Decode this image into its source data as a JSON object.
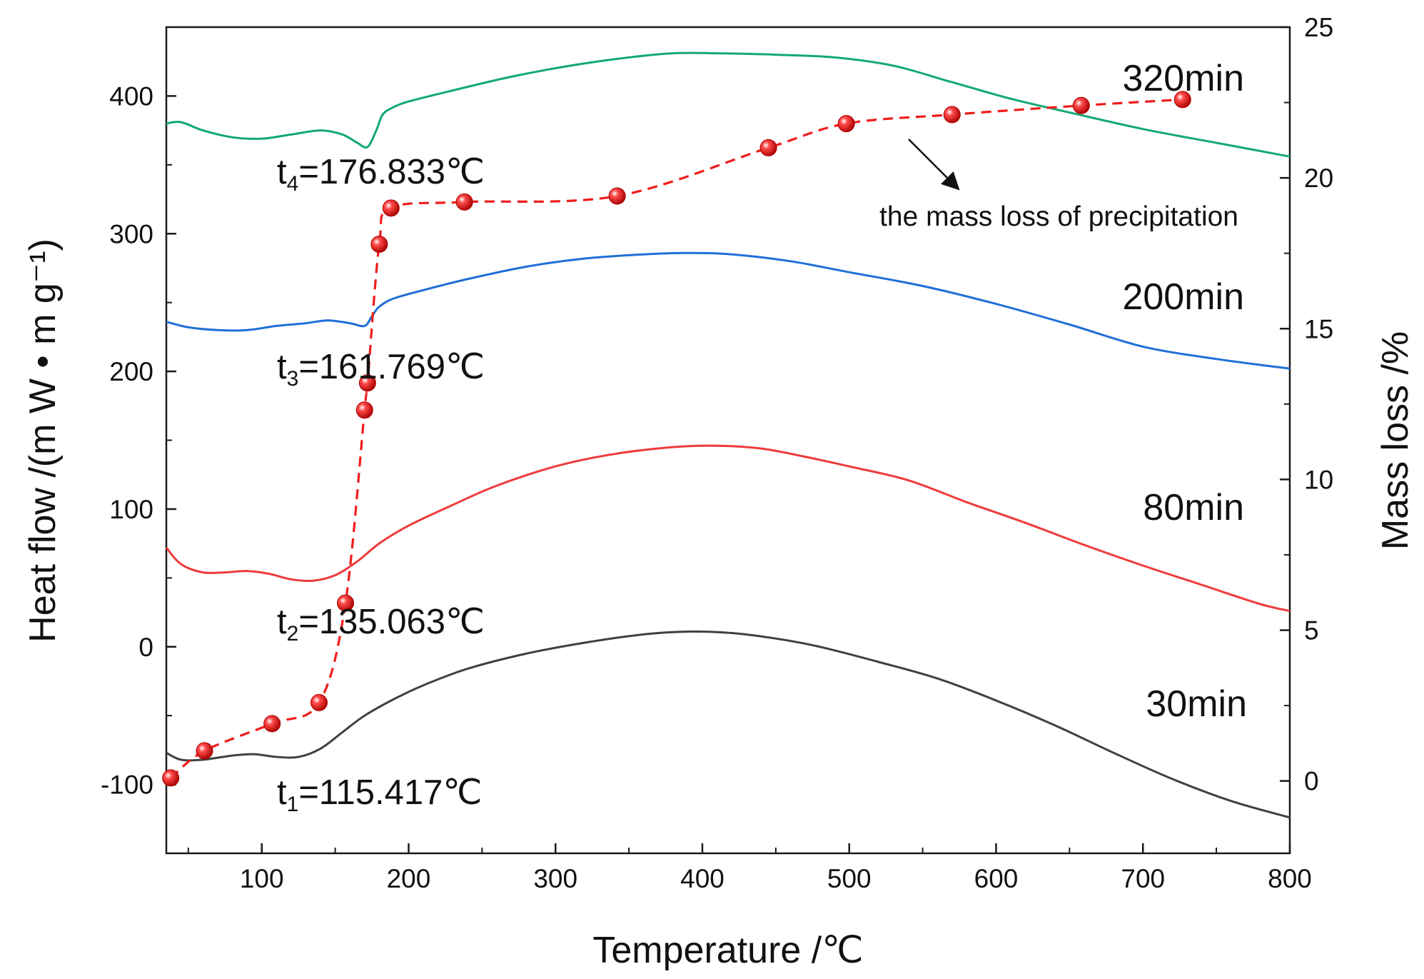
{
  "chart_data": {
    "type": "line",
    "title": "",
    "xlabel": "Temperature /℃",
    "ylabel": "Heat flow /(m W • m g⁻¹)",
    "y2label": "Mass loss /%",
    "xlim": [
      35,
      800
    ],
    "ylim": [
      -150,
      450
    ],
    "y2lim": [
      -2.4,
      25
    ],
    "x_ticks": [
      100,
      200,
      300,
      400,
      500,
      600,
      700,
      800
    ],
    "y_ticks": [
      -100,
      0,
      100,
      200,
      300,
      400
    ],
    "y2_ticks": [
      0,
      5,
      10,
      15,
      20,
      25
    ],
    "series": [
      {
        "name": "30min",
        "axis": "left",
        "color": "#404040",
        "x": [
          35,
          45,
          60,
          80,
          95,
          110,
          125,
          140,
          155,
          170,
          190,
          210,
          240,
          280,
          320,
          360,
          390,
          420,
          450,
          480,
          520,
          560,
          600,
          640,
          680,
          720,
          760,
          800
        ],
        "y": [
          -77,
          -82,
          -82,
          -79,
          -78,
          -80,
          -80,
          -74,
          -62,
          -50,
          -38,
          -28,
          -16,
          -5,
          3,
          9,
          11,
          10,
          6,
          0,
          -11,
          -23,
          -39,
          -57,
          -77,
          -96,
          -112,
          -124
        ]
      },
      {
        "name": "80min",
        "axis": "left",
        "color": "#ef3b3b",
        "x": [
          35,
          45,
          60,
          75,
          90,
          105,
          120,
          135,
          150,
          165,
          180,
          200,
          230,
          260,
          300,
          340,
          380,
          410,
          440,
          470,
          500,
          540,
          580,
          620,
          660,
          700,
          740,
          780,
          800
        ],
        "y": [
          72,
          60,
          54,
          54,
          55,
          53,
          49,
          48,
          52,
          62,
          75,
          88,
          103,
          117,
          131,
          140,
          145,
          146,
          144,
          138,
          131,
          121,
          105,
          90,
          74,
          59,
          45,
          31,
          26
        ]
      },
      {
        "name": "200min",
        "axis": "left",
        "color": "#1f6fd6",
        "x": [
          35,
          50,
          70,
          90,
          110,
          130,
          145,
          160,
          170,
          175,
          180,
          190,
          210,
          240,
          280,
          320,
          360,
          390,
          420,
          460,
          500,
          550,
          600,
          650,
          700,
          750,
          800
        ],
        "y": [
          236,
          232,
          230,
          230,
          233,
          235,
          237,
          235,
          233,
          240,
          247,
          253,
          259,
          267,
          276,
          282,
          285,
          286,
          285,
          280,
          272,
          262,
          249,
          234,
          218,
          209,
          202
        ]
      },
      {
        "name": "320min",
        "axis": "left",
        "color": "#12a876",
        "x": [
          35,
          45,
          60,
          80,
          100,
          120,
          140,
          155,
          165,
          172,
          178,
          182,
          188,
          200,
          230,
          270,
          310,
          350,
          380,
          410,
          450,
          490,
          530,
          570,
          610,
          650,
          700,
          750,
          800
        ],
        "y": [
          380,
          381,
          375,
          370,
          369,
          372,
          375,
          372,
          366,
          363,
          375,
          386,
          391,
          396,
          404,
          414,
          422,
          428,
          431,
          431,
          430,
          428,
          422,
          410,
          398,
          388,
          376,
          366,
          356
        ]
      },
      {
        "name": "the mass loss of precipitation",
        "axis": "right",
        "color": "#ef1c1c",
        "style": "dashed",
        "markers": true,
        "x": [
          38,
          61,
          107,
          139,
          157,
          170,
          172,
          180,
          188,
          238,
          342,
          445,
          498,
          570,
          658,
          727
        ],
        "y": [
          0.1,
          1.0,
          1.9,
          2.6,
          5.9,
          12.3,
          13.2,
          17.8,
          19.0,
          19.2,
          19.4,
          21.0,
          21.8,
          22.1,
          22.4,
          22.6
        ]
      }
    ],
    "annotations": [
      {
        "label": "t",
        "sub": "1",
        "value": "=115.417℃"
      },
      {
        "label": "t",
        "sub": "2",
        "value": "=135.063℃"
      },
      {
        "label": "t",
        "sub": "3",
        "value": "=161.769℃"
      },
      {
        "label": "t",
        "sub": "4",
        "value": "=176.833℃"
      }
    ],
    "arrow_note": "the mass loss of precipitation"
  },
  "colors": {
    "axis": "#1a1a1a",
    "background": "#ffffff"
  }
}
